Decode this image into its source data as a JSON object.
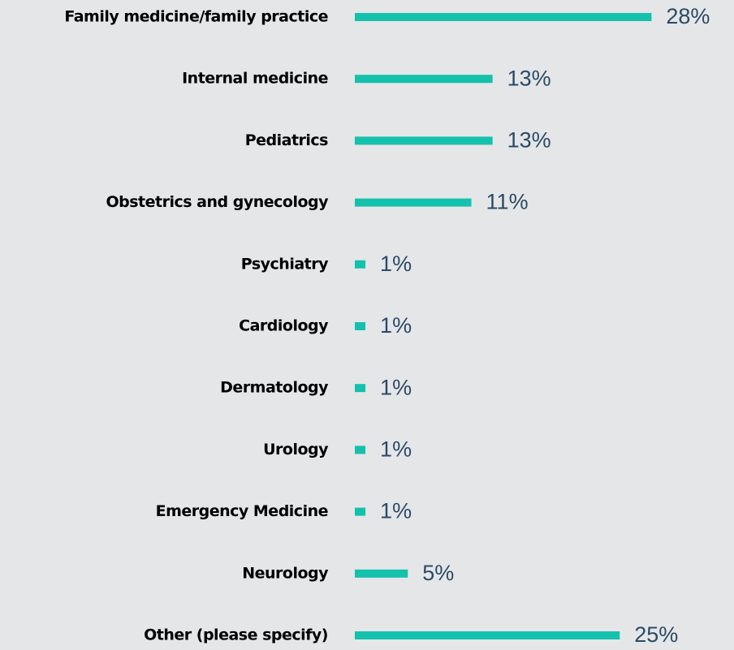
{
  "chart_data": {
    "type": "bar",
    "orientation": "horizontal",
    "color": "#14c1ad",
    "categories": [
      "Family medicine/family practice",
      "Internal medicine",
      "Pediatrics",
      "Obstetrics and gynecology",
      "Psychiatry",
      "Cardiology",
      "Dermatology",
      "Urology",
      "Emergency Medicine",
      "Neurology",
      "Other (please specify)"
    ],
    "values": [
      28,
      13,
      13,
      11,
      1,
      1,
      1,
      1,
      1,
      5,
      25
    ],
    "value_labels": [
      "28%",
      "13%",
      "13%",
      "11%",
      "1%",
      "1%",
      "1%",
      "1%",
      "1%",
      "5%",
      "25%"
    ]
  }
}
